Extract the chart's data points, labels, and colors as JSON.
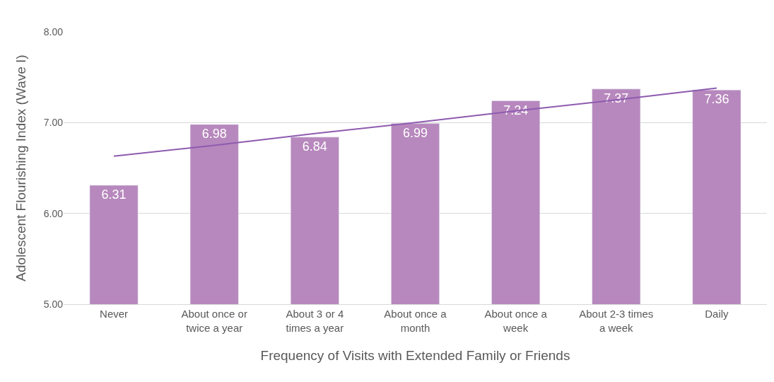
{
  "chart_data": {
    "type": "bar",
    "xlabel": "Frequency of Visits with Extended Family or Friends",
    "ylabel": "Adolescent Flourishing Index (Wave I)",
    "categories": [
      "Never",
      "About once or twice a year",
      "About 3 or 4 times a year",
      "About once a month",
      "About once a week",
      "About 2-3 times a week",
      "Daily"
    ],
    "series": [
      {
        "color": "#b788bd",
        "values": [
          6.31,
          6.98,
          6.84,
          6.99,
          7.24,
          7.37,
          7.36
        ],
        "value_labels": [
          "6.31",
          "6.98",
          "6.84",
          "6.99",
          "7.24",
          "7.37",
          "7.36"
        ]
      },
      {
        "type": "line",
        "color": "#8e5bb0",
        "values": [
          6.63,
          6.75,
          6.88,
          7.0,
          7.13,
          7.25,
          7.38
        ]
      }
    ],
    "ylim": [
      5,
      8
    ],
    "yticks": [
      {
        "value": 5,
        "label": "5.00"
      },
      {
        "value": 6,
        "label": "6.00"
      },
      {
        "value": 7,
        "label": "7.00"
      },
      {
        "value": 8,
        "label": "8.00"
      }
    ],
    "grid": "y"
  }
}
